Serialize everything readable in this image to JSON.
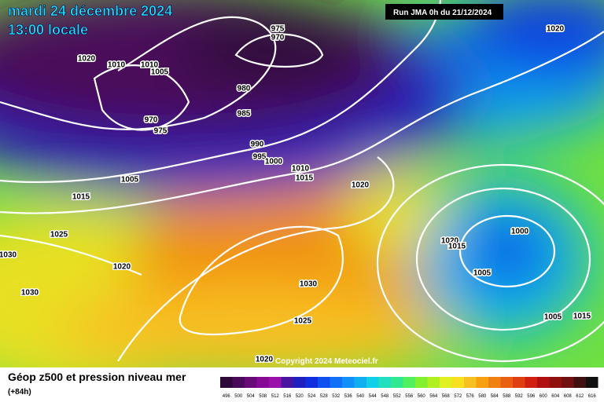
{
  "header": {
    "date": "mardi 24 décembre 2024",
    "time": "13:00 locale",
    "run": "Run JMA 0h du 21/12/2024"
  },
  "isobar_labels": [
    975,
    970,
    1020,
    1020,
    1010,
    1010,
    1005,
    980,
    985,
    970,
    975,
    990,
    995,
    1000,
    1010,
    1015,
    1020,
    1005,
    1015,
    1025,
    1030,
    1020,
    1030,
    1030,
    1025,
    1020,
    1000,
    1020,
    1015,
    1005,
    1005,
    1015
  ],
  "footer": {
    "title": "Géop z500 et pression niveau mer",
    "lead": "(+84h)",
    "copyright": "Copyright 2024 Meteociel.fr"
  },
  "color_scale": {
    "values": [
      496,
      500,
      504,
      508,
      512,
      516,
      520,
      524,
      528,
      532,
      536,
      540,
      544,
      548,
      552,
      556,
      560,
      564,
      568,
      572,
      576,
      580,
      584,
      588,
      592,
      596,
      600,
      604,
      608,
      612,
      616
    ],
    "colors": [
      "#2e0a3a",
      "#4a0a5a",
      "#6a0a7a",
      "#860a96",
      "#9a10aa",
      "#4a14a0",
      "#2020c0",
      "#1030e0",
      "#1050f0",
      "#1070f8",
      "#1090f8",
      "#10b0f0",
      "#10d0e8",
      "#20e0c0",
      "#30e890",
      "#50f060",
      "#80f030",
      "#b0f020",
      "#e0f020",
      "#f8e020",
      "#f8c020",
      "#f8a010",
      "#f08010",
      "#e86010",
      "#e04010",
      "#d02010",
      "#b01010",
      "#901010",
      "#701010",
      "#401010",
      "#101010"
    ]
  }
}
